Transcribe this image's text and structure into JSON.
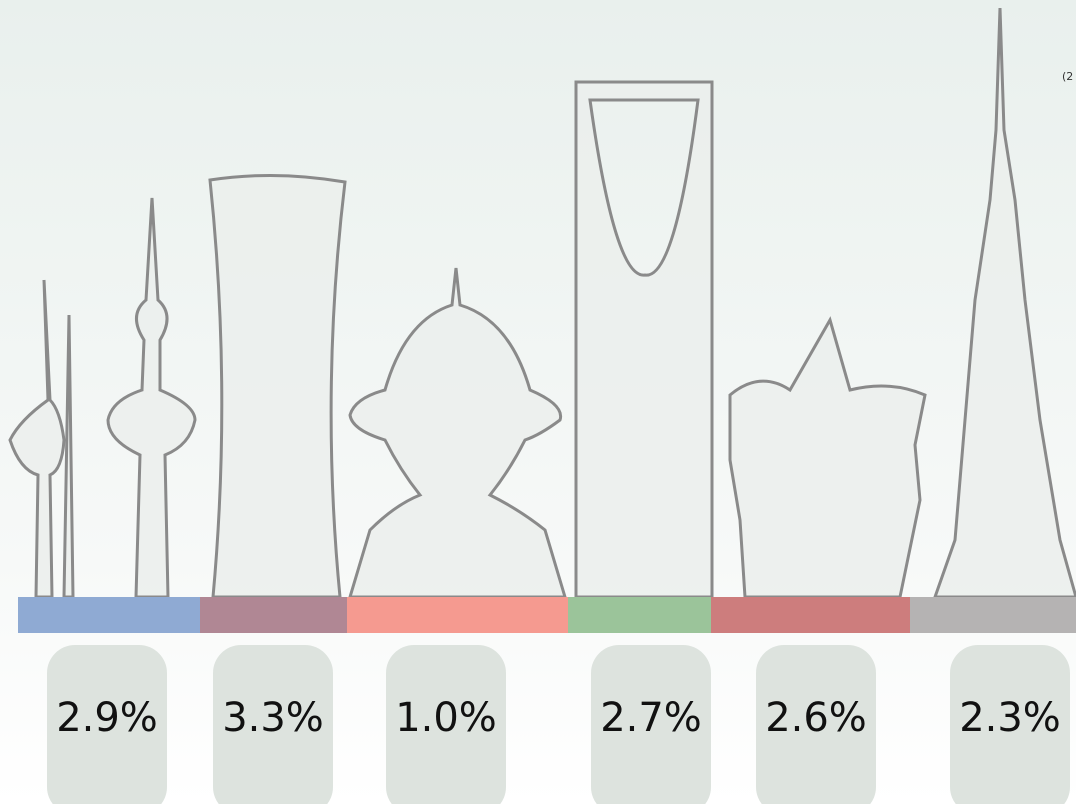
{
  "corner_note": "(2",
  "items": [
    {
      "label": "2.9%",
      "color": "#8faad3"
    },
    {
      "label": "3.3%",
      "color": "#b08794"
    },
    {
      "label": "1.0%",
      "color": "#f59a90"
    },
    {
      "label": "2.7%",
      "color": "#9bc49a"
    },
    {
      "label": "2.6%",
      "color": "#cd7d7d"
    },
    {
      "label": "2.3%",
      "color": "#b5b3b3"
    }
  ]
}
